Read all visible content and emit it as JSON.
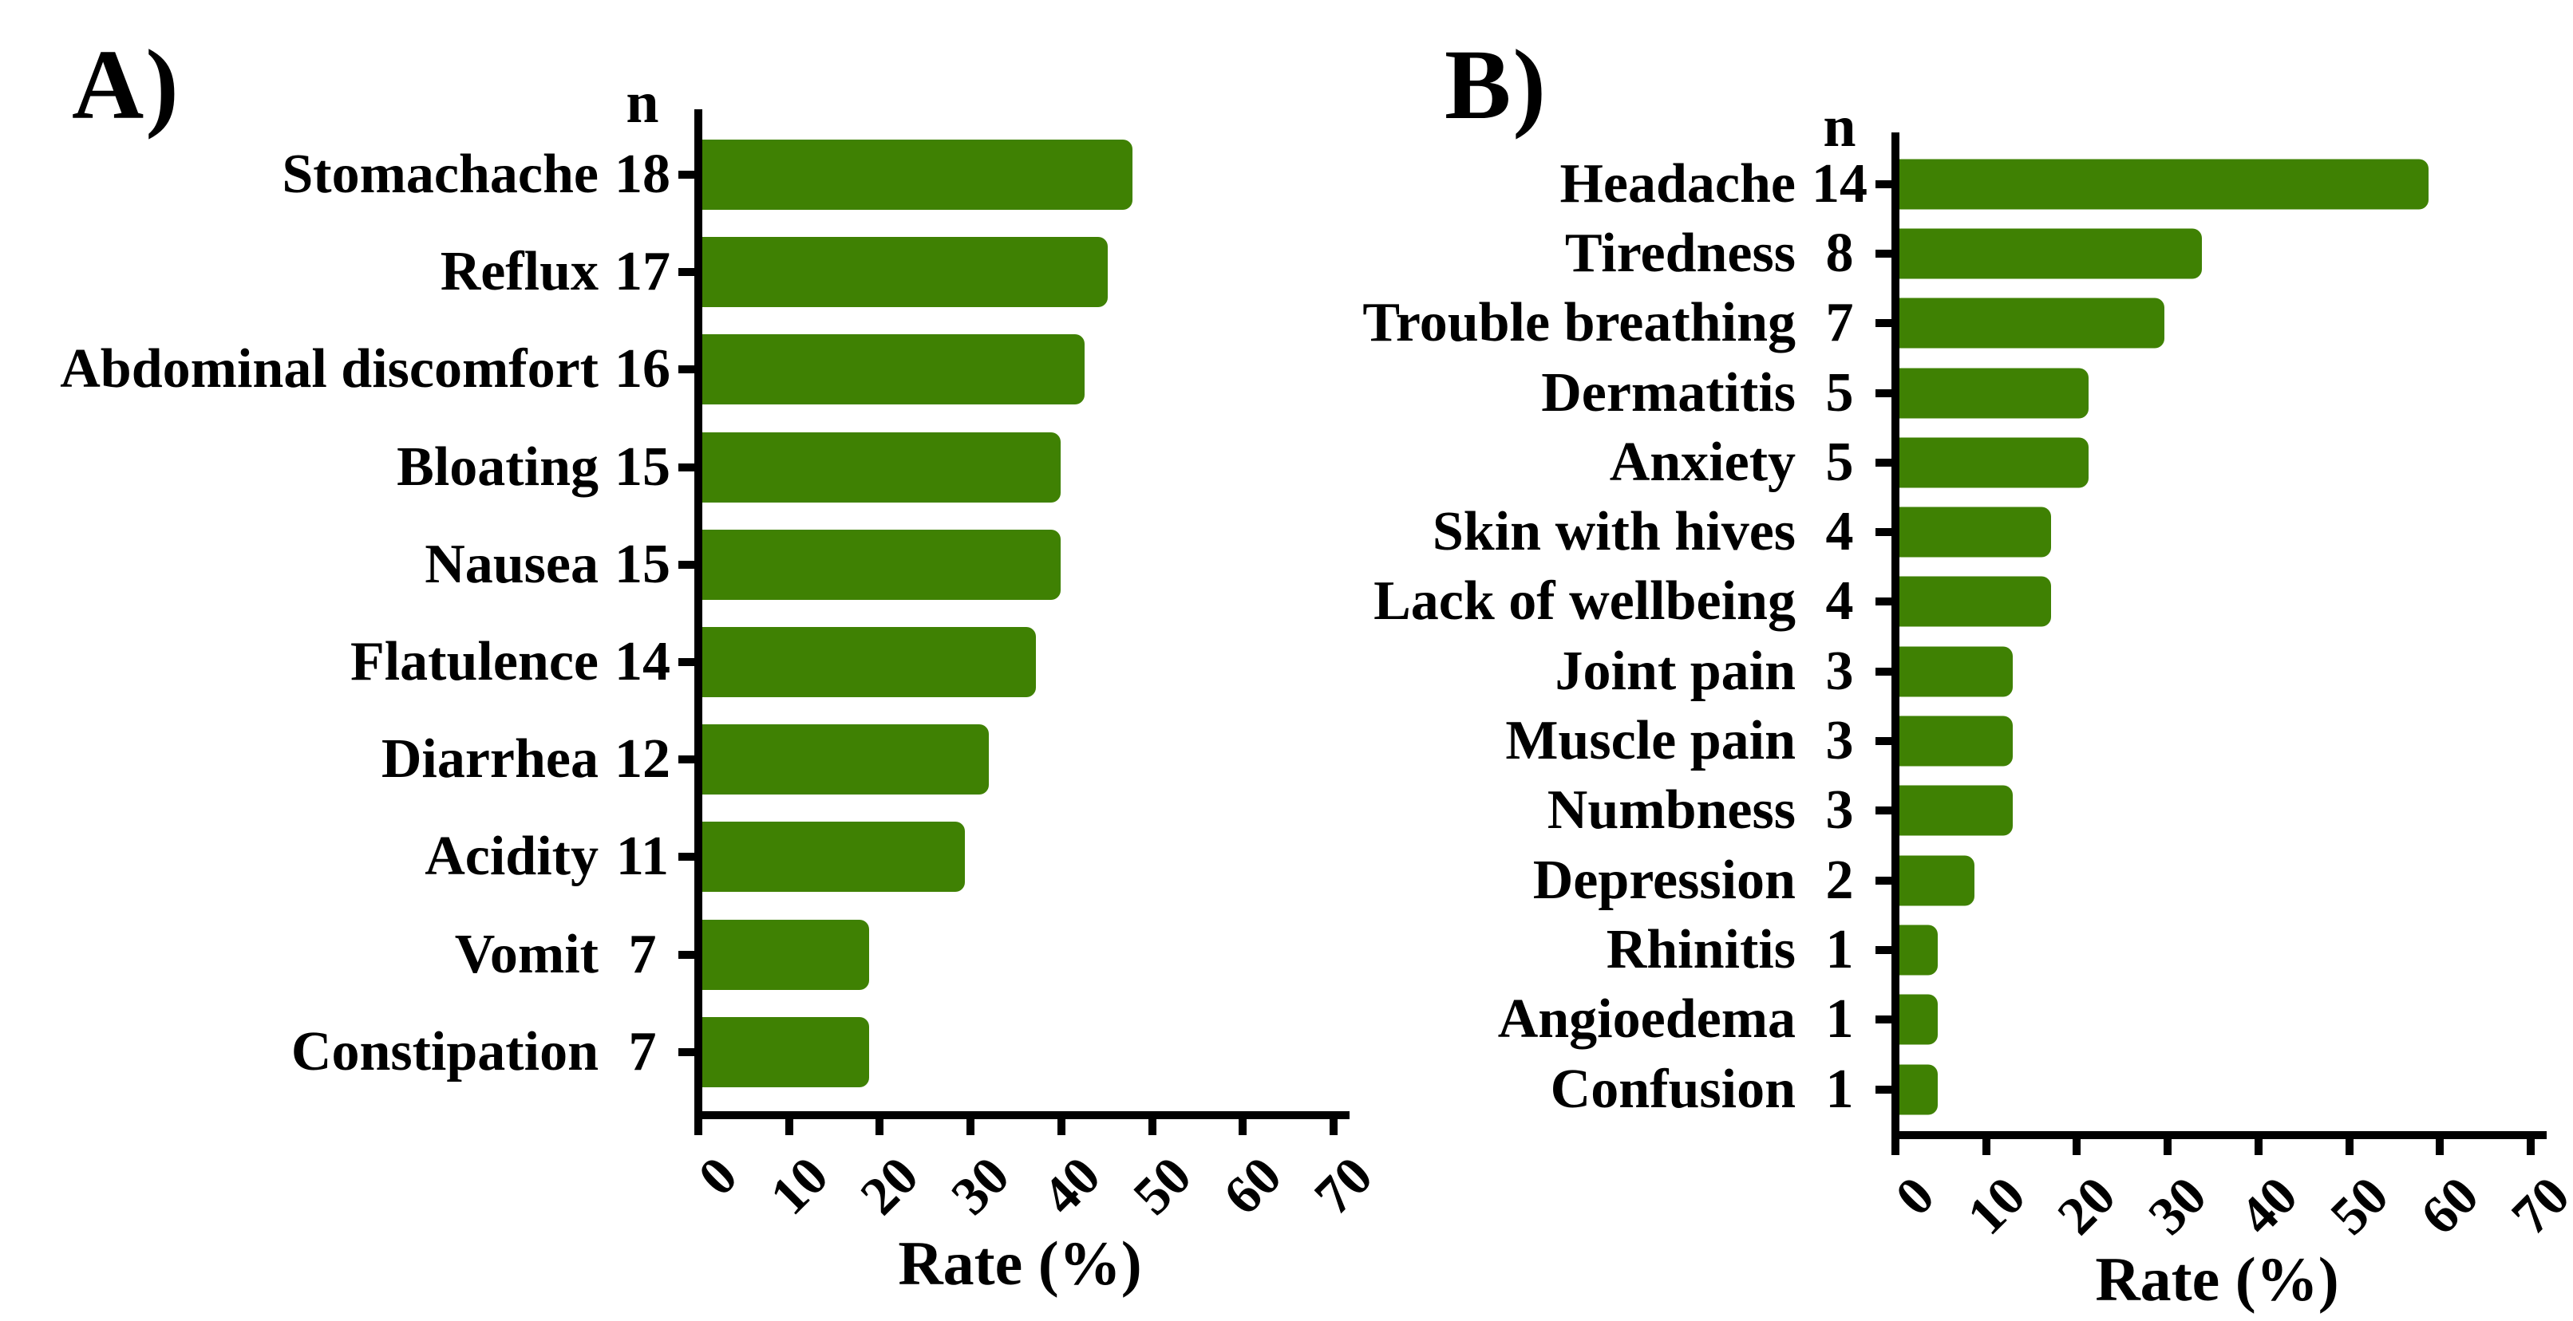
{
  "colors": {
    "bar": "#3f8103",
    "axis": "#000000",
    "text": "#000000",
    "background": "#ffffff"
  },
  "chart_data": [
    {
      "type": "bar",
      "orientation": "horizontal",
      "panel_label": "A)",
      "n_column_header": "n",
      "categories": [
        "Stomachache",
        "Reflux",
        "Abdominal discomfort",
        "Bloating",
        "Nausea",
        "Flatulence",
        "Diarrhea",
        "Acidity",
        "Vomit",
        "Constipation"
      ],
      "n_values": [
        18,
        17,
        16,
        15,
        15,
        14,
        12,
        11,
        7,
        7
      ],
      "values": [
        47.4,
        44.7,
        42.1,
        39.5,
        39.5,
        36.8,
        31.6,
        28.9,
        18.4,
        18.4
      ],
      "xlabel": "Rate (%)",
      "xlim": [
        0,
        70
      ],
      "x_ticks": [
        0,
        10,
        20,
        30,
        40,
        50,
        60,
        70
      ],
      "x_tick_rotation_deg": 45,
      "bar_color": "#3f8103",
      "grid": false,
      "legend": "none"
    },
    {
      "type": "bar",
      "orientation": "horizontal",
      "panel_label": "B)",
      "n_column_header": "n",
      "categories": [
        "Headache",
        "Tiredness",
        "Trouble breathing",
        "Dermatitis",
        "Anxiety",
        "Skin with hives",
        "Lack of wellbeing",
        "Joint pain",
        "Muscle pain",
        "Numbness",
        "Depression",
        "Rhinitis",
        "Angioedema",
        "Confusion"
      ],
      "n_values": [
        14,
        8,
        7,
        5,
        5,
        4,
        4,
        3,
        3,
        3,
        2,
        1,
        1,
        1
      ],
      "values": [
        58.3,
        33.3,
        29.2,
        20.8,
        20.8,
        16.7,
        16.7,
        12.5,
        12.5,
        12.5,
        8.3,
        4.2,
        4.2,
        4.2
      ],
      "xlabel": "Rate (%)",
      "xlim": [
        0,
        70
      ],
      "x_ticks": [
        0,
        10,
        20,
        30,
        40,
        50,
        60,
        70
      ],
      "x_tick_rotation_deg": 45,
      "bar_color": "#3f8103",
      "grid": false,
      "legend": "none"
    }
  ]
}
